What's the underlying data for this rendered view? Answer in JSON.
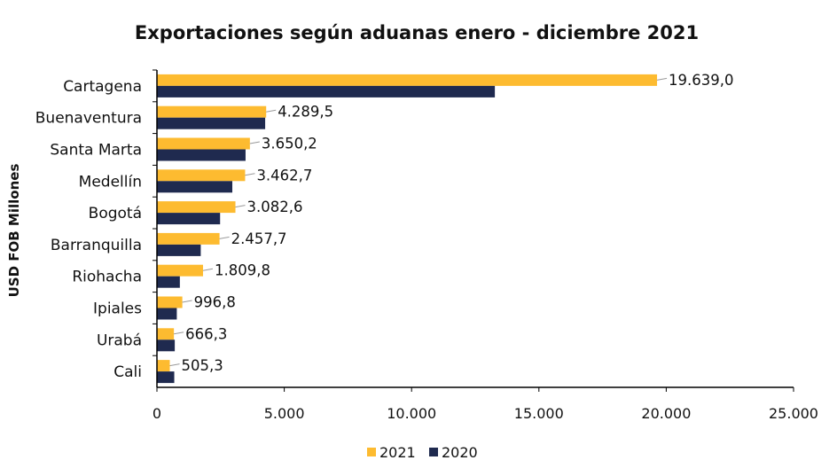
{
  "chart_data": {
    "type": "bar",
    "orientation": "horizontal",
    "title": "Exportaciones según aduanas enero - diciembre 2021",
    "xlabel": "",
    "ylabel": "USD FOB Millones",
    "categories": [
      "Cartagena",
      "Buenaventura",
      "Santa Marta",
      "Medellín",
      "Bogotá",
      "Barranquilla",
      "Riohacha",
      "Ipiales",
      "Urabá",
      "Cali"
    ],
    "series": [
      {
        "name": "2021",
        "color": "#FDBB30",
        "values": [
          19639.0,
          4289.5,
          3650.2,
          3462.7,
          3082.6,
          2457.7,
          1809.8,
          996.8,
          666.3,
          505.3
        ],
        "labels": [
          "19.639,0",
          "4.289,5",
          "3.650,2",
          "3.462,7",
          "3.082,6",
          "2.457,7",
          "1.809,8",
          "996,8",
          "666,3",
          "505,3"
        ]
      },
      {
        "name": "2020",
        "color": "#1F2A4F",
        "values": [
          13270,
          4250,
          3480,
          2960,
          2480,
          1720,
          900,
          780,
          700,
          680
        ]
      }
    ],
    "xlim": [
      0,
      25000
    ],
    "xticks": [
      0,
      5000,
      10000,
      15000,
      20000,
      25000
    ],
    "xtick_labels": [
      "0",
      "5.000",
      "10.000",
      "15.000",
      "20.000",
      "25.000"
    ],
    "grid": false,
    "legend": "bottom"
  }
}
